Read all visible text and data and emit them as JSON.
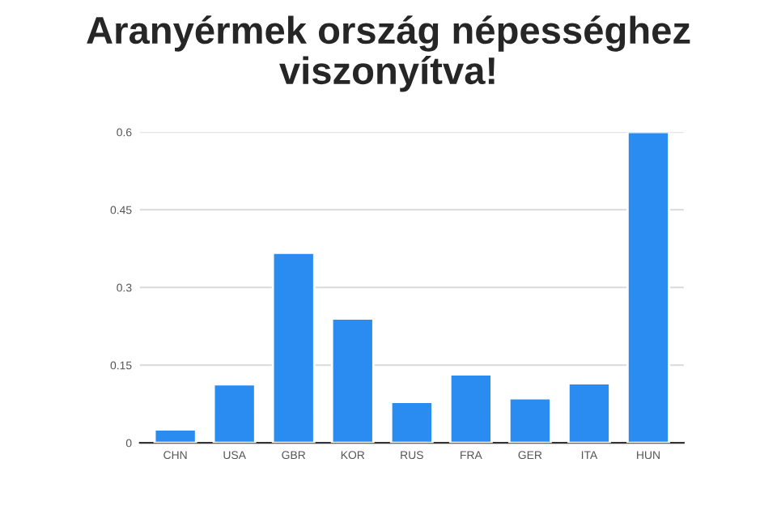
{
  "chart_data": {
    "type": "bar",
    "title": "Aranyérmek ország népességhez\nviszonyítva!",
    "categories": [
      "CHN",
      "USA",
      "GBR",
      "KOR",
      "RUS",
      "FRA",
      "GER",
      "ITA",
      "HUN"
    ],
    "values": [
      0.026,
      0.113,
      0.367,
      0.24,
      0.079,
      0.132,
      0.086,
      0.115,
      0.6
    ],
    "color": "#2a8cf0",
    "ylim": [
      0,
      0.6
    ],
    "yticks": [
      0,
      0.15,
      0.3,
      0.45,
      0.6
    ],
    "grid": "y",
    "legend": false
  }
}
